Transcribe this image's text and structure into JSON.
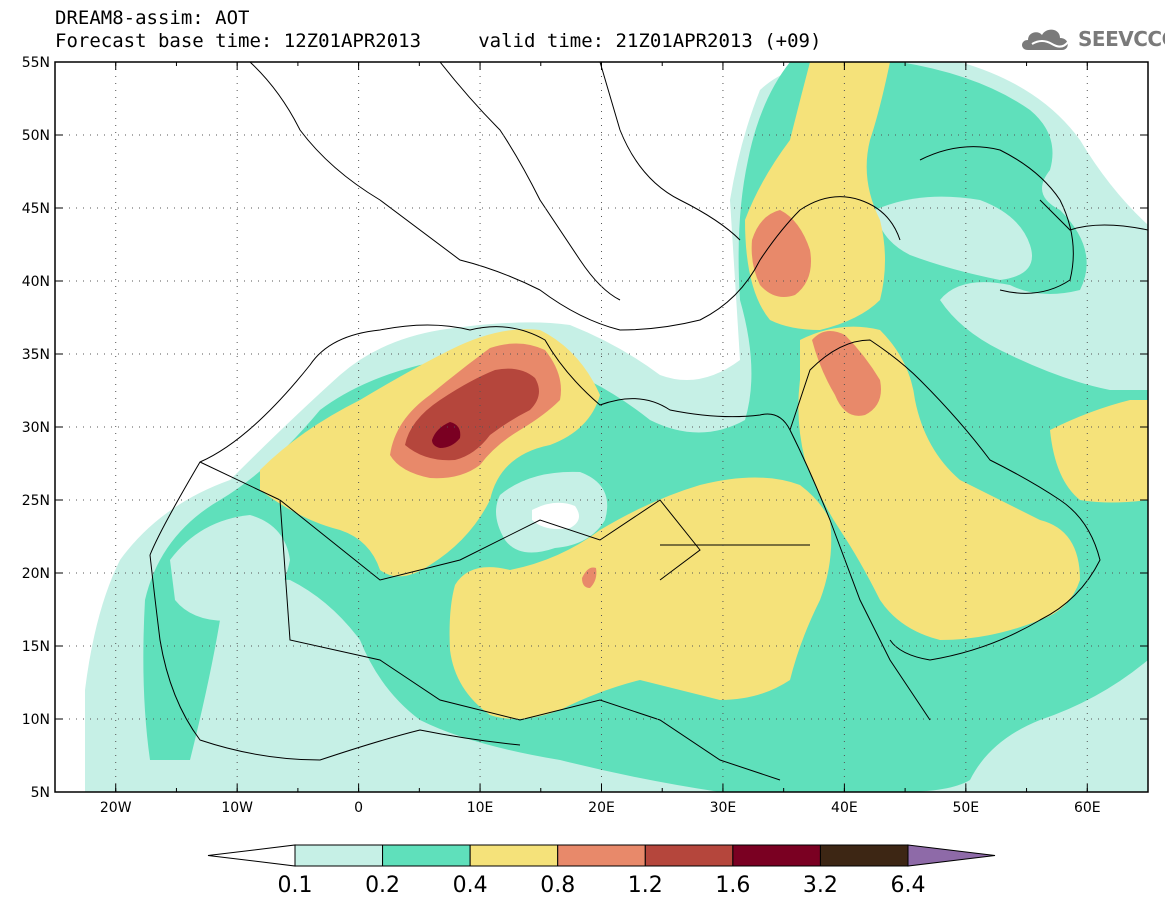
{
  "title": {
    "line1": "DREAM8-assim: AOT",
    "line2": "Forecast base time: 12Z01APR2013     valid time: 21Z01APR2013 (+09)"
  },
  "logo": {
    "icon": "cloud-icon",
    "text": "SEEVCCC"
  },
  "map": {
    "lon_range": [
      -25,
      65
    ],
    "lat_range": [
      5,
      55
    ],
    "lon_ticks": [
      {
        "value": -20,
        "label": "20W"
      },
      {
        "value": -10,
        "label": "10W"
      },
      {
        "value": 0,
        "label": "0"
      },
      {
        "value": 10,
        "label": "10E"
      },
      {
        "value": 20,
        "label": "20E"
      },
      {
        "value": 30,
        "label": "30E"
      },
      {
        "value": 40,
        "label": "40E"
      },
      {
        "value": 50,
        "label": "50E"
      },
      {
        "value": 60,
        "label": "60E"
      }
    ],
    "lat_ticks": [
      {
        "value": 55,
        "label": "55N"
      },
      {
        "value": 50,
        "label": "50N"
      },
      {
        "value": 45,
        "label": "45N"
      },
      {
        "value": 40,
        "label": "40N"
      },
      {
        "value": 35,
        "label": "35N"
      },
      {
        "value": 30,
        "label": "30N"
      },
      {
        "value": 25,
        "label": "25N"
      },
      {
        "value": 20,
        "label": "20N"
      },
      {
        "value": 15,
        "label": "15N"
      },
      {
        "value": 10,
        "label": "10N"
      },
      {
        "value": 5,
        "label": "5N"
      }
    ],
    "gridlines": true
  },
  "colorbar": {
    "levels": [
      "0.1",
      "0.2",
      "0.4",
      "0.8",
      "1.2",
      "1.6",
      "3.2",
      "6.4"
    ],
    "colors": [
      "#ffffff",
      "#c6f0e6",
      "#5fe0bb",
      "#f5e27a",
      "#e8896a",
      "#b5463c",
      "#7a0022",
      "#3d2614",
      "#8e6aa8"
    ]
  }
}
